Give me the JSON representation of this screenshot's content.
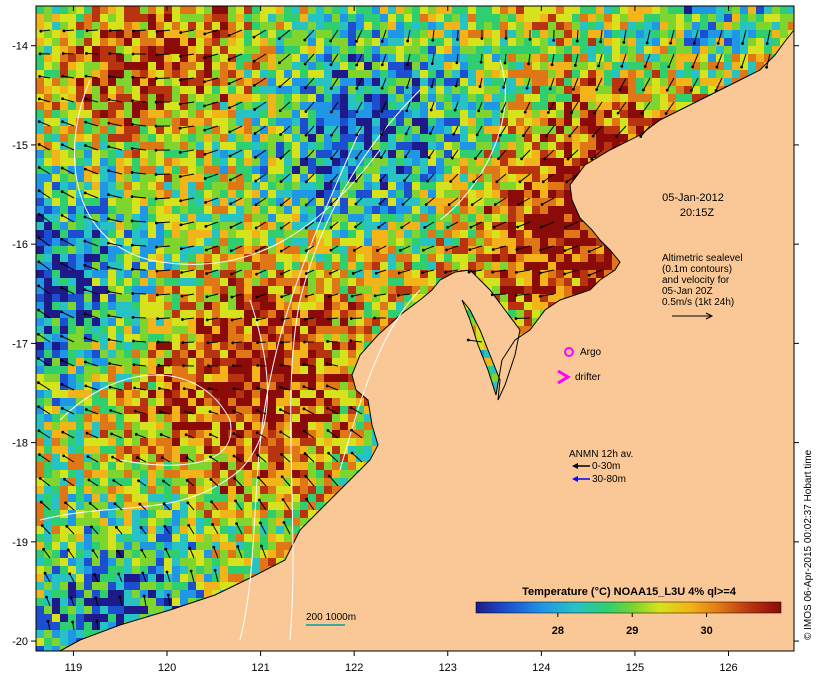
{
  "colors": {
    "land": "#f9c896",
    "sea_palette": [
      "#1f1a8a",
      "#1b4fcf",
      "#1f97e6",
      "#27c2c4",
      "#2fcf6f",
      "#7fd42e",
      "#d6e21c",
      "#f2b418",
      "#e07716",
      "#b8340f",
      "#8a0b07"
    ],
    "contour": "#ffffff",
    "vector": "#000000",
    "argo": "#ff00ff",
    "drifter": "#ff00ff",
    "anmn_deep": "#0000ff",
    "scale_bar": "#00a0a0"
  },
  "map": {
    "x_ticks": [
      "119",
      "120",
      "121",
      "122",
      "123",
      "124",
      "125",
      "126"
    ],
    "y_ticks": [
      "-14",
      "-15",
      "-16",
      "-17",
      "-18",
      "-19",
      "-20"
    ],
    "lon_range": [
      118.6,
      126.7
    ],
    "lat_range": [
      -20.1,
      -13.6
    ]
  },
  "annotations": {
    "date": "05-Jan-2012",
    "time": "20:15Z",
    "alt_lines": [
      "Altimetric sealevel",
      "(0.1m contours)",
      "and velocity for",
      "05-Jan 20Z",
      "0.5m/s (1kt 24h)"
    ],
    "argo_label": "Argo",
    "drifter_label": "drifter",
    "anmn_title": "ANMN 12h av.",
    "anmn_shallow": "0-30m",
    "anmn_deep": "30-80m",
    "scale_label": "200  1000m"
  },
  "colorbar": {
    "title": "Temperature (°C) NOAA15_L3U 4% ql>=4",
    "labels": [
      "28",
      "29",
      "30"
    ],
    "range": [
      26.9,
      31.0
    ]
  },
  "credit": "© IMOS 06-Apr-2015 00:02:37 Hobart time"
}
